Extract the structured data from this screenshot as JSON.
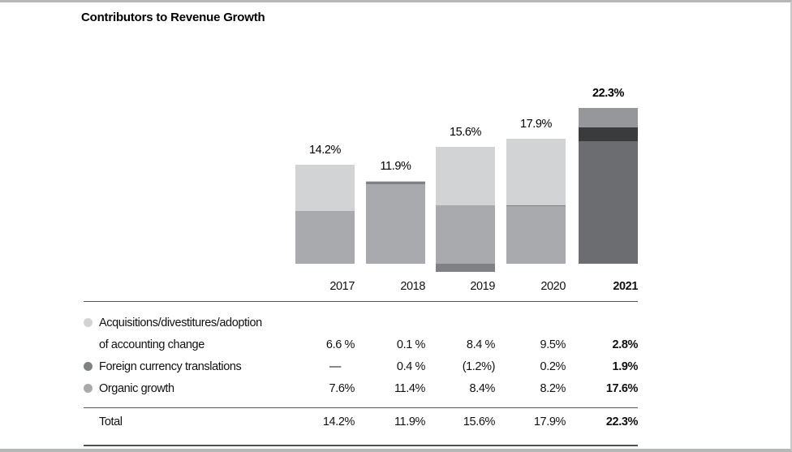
{
  "title": "Contributors to Revenue Growth",
  "chart_data": {
    "type": "bar",
    "variant": "stacked-column",
    "title": "Contributors to Revenue Growth",
    "unit": "percent",
    "categories": [
      "2017",
      "2018",
      "2019",
      "2020",
      "2021"
    ],
    "highlight_category": "2021",
    "totals": [
      14.2,
      11.9,
      15.6,
      17.9,
      22.3
    ],
    "totals_display": [
      "14.2%",
      "11.9%",
      "15.6%",
      "17.9%",
      "22.3%"
    ],
    "series": [
      {
        "key": "acquisitions",
        "name": "Acquisitions/divestitures/adoption of accounting change",
        "label_lines": [
          "Acquisitions/divestitures/adoption",
          "of accounting change"
        ],
        "values": [
          6.6,
          0.1,
          8.4,
          9.5,
          2.8
        ],
        "display": [
          "6.6 %",
          "0.1 %",
          "8.4 %",
          "9.5%",
          "2.8%"
        ],
        "color": "#d2d3d5",
        "highlight_color": "#95979a"
      },
      {
        "key": "foreign-currency",
        "name": "Foreign currency translations",
        "label_lines": [
          "Foreign currency translations"
        ],
        "values": [
          0,
          0.4,
          -1.2,
          0.2,
          1.9
        ],
        "display": [
          "—",
          "0.4 %",
          "(1.2%)",
          "0.2%",
          "1.9%"
        ],
        "color": "#7f8184",
        "highlight_color": "#3a3b3d"
      },
      {
        "key": "organic",
        "name": "Organic growth",
        "label_lines": [
          "Organic growth"
        ],
        "values": [
          7.6,
          11.4,
          8.4,
          8.2,
          17.6
        ],
        "display": [
          "7.6%",
          "11.4%",
          "8.4%",
          "8.2%",
          "17.6%"
        ],
        "color": "#a8aaad",
        "highlight_color": "#6b6d70"
      }
    ],
    "stack_order_top_to_bottom": [
      "acquisitions",
      "foreign-currency",
      "organic"
    ],
    "baseline_value": 0,
    "ylim": [
      -1.5,
      23
    ],
    "grid": false,
    "legend_position": "table-below"
  },
  "table": {
    "total_label": "Total"
  }
}
